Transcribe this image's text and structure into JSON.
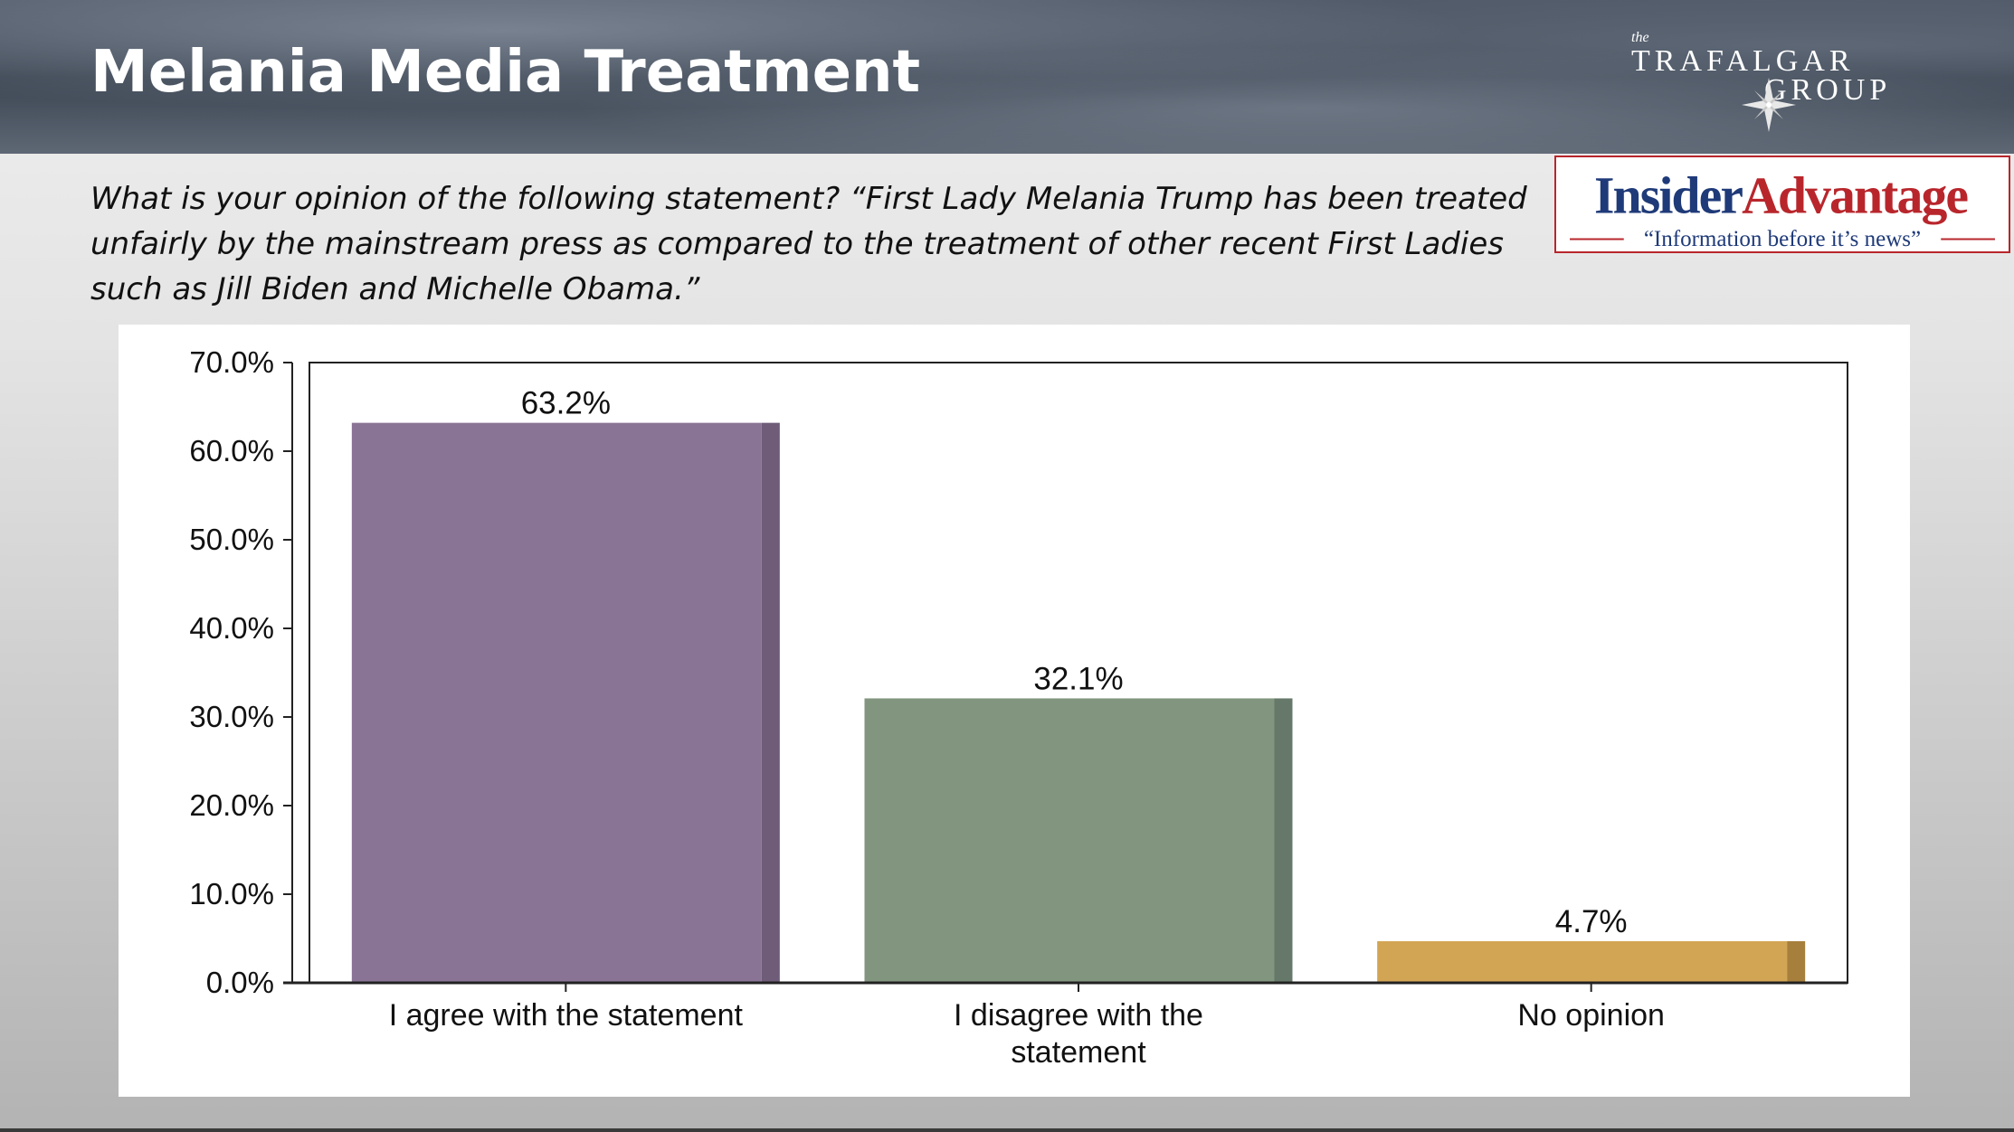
{
  "page": {
    "title": "Melania Media Treatment",
    "question": "What is your opinion of the following statement? “First Lady Melania Trump has been treated unfairly by the mainstream press as compared to the treatment of other recent First Ladies such as Jill Biden and Michelle Obama.”"
  },
  "logos": {
    "trafalgar": {
      "the": "the",
      "line1": "TRAFALGAR",
      "line2": "GROUP"
    },
    "insider": {
      "part1": "Insider",
      "part2": "Advantage",
      "tagline": "“Information before it’s news”"
    }
  },
  "colors": {
    "agree": "#8a7496",
    "agree_dark": "#6e5c78",
    "disagree": "#82967f",
    "disagree_dark": "#66786a",
    "no_opinion": "#d2a555",
    "no_opinion_dark": "#a67f3c",
    "insider_blue": "#1f3a78",
    "insider_red": "#b8262c"
  },
  "chart_data": {
    "type": "bar",
    "categories": [
      "I agree with the statement",
      "I disagree with the statement",
      "No opinion"
    ],
    "category_lines": [
      [
        "I agree with the statement"
      ],
      [
        "I disagree with the",
        "statement"
      ],
      [
        "No opinion"
      ]
    ],
    "values": [
      63.2,
      32.1,
      4.7
    ],
    "data_labels": [
      "63.2%",
      "32.1%",
      "4.7%"
    ],
    "bar_colors": [
      "#8a7496",
      "#82967f",
      "#d2a555"
    ],
    "bar_shade_colors": [
      "#6e5c78",
      "#66786a",
      "#a67f3c"
    ],
    "ylim": [
      0,
      70
    ],
    "yticks": [
      0,
      10,
      20,
      30,
      40,
      50,
      60,
      70
    ],
    "ytick_labels": [
      "0.0%",
      "10.0%",
      "20.0%",
      "30.0%",
      "40.0%",
      "50.0%",
      "60.0%",
      "70.0%"
    ],
    "grid": false,
    "legend": false
  }
}
